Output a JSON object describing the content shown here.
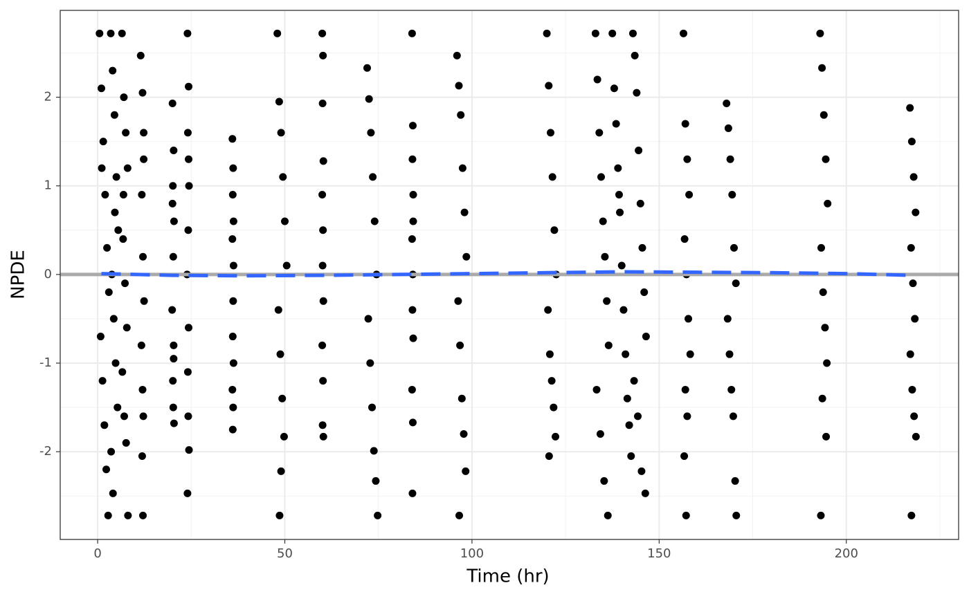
{
  "chart_data": {
    "type": "scatter",
    "x_label": "Time (hr)",
    "y_label": "NPDE",
    "xlim": [
      -10,
      230
    ],
    "ylim": [
      -2.99,
      2.98
    ],
    "xticks": [
      0,
      50,
      100,
      150,
      200
    ],
    "yticks": [
      -2,
      -1,
      0,
      1,
      2
    ],
    "grid": true,
    "color": "#000000",
    "x": [
      0.5,
      1,
      1.5,
      2,
      2.5,
      3,
      0.8,
      1.3,
      1.8,
      2.3,
      2.8,
      1.1,
      3.5,
      4,
      4.5,
      5,
      5.5,
      3.8,
      4.3,
      4.8,
      5.3,
      3.6,
      4.1,
      4.6,
      6.5,
      7,
      7.5,
      8,
      6.8,
      7.3,
      7.8,
      6.6,
      7.1,
      7.6,
      8.1,
      6.9,
      11.5,
      12,
      12.3,
      11.8,
      12.1,
      12.4,
      11.7,
      12,
      12.2,
      11.9,
      12.1,
      12.3,
      20,
      20.3,
      20.1,
      20.4,
      20.2,
      19.9,
      20.3,
      20.1,
      20.2,
      20.4,
      20,
      20.3,
      24,
      24.3,
      24.1,
      24.4,
      24.2,
      23.9,
      24.3,
      24.1,
      24.2,
      24.4,
      24,
      24.3,
      36,
      36.2,
      36.1,
      36.3,
      36,
      36.2,
      36.1,
      36.3,
      36,
      36.2,
      36.1,
      36.3,
      48,
      48.5,
      49,
      49.5,
      50,
      50.5,
      48.3,
      48.8,
      49.3,
      49.8,
      49,
      48.6,
      60,
      60.2,
      60.1,
      60.3,
      60,
      60.2,
      60.1,
      60.3,
      60,
      60.2,
      60.1,
      60.3,
      72,
      72.5,
      73,
      73.5,
      74,
      74.5,
      72.3,
      72.8,
      73.3,
      73.8,
      74.3,
      74.8,
      84,
      84.2,
      84.1,
      84.3,
      84,
      84.2,
      84.1,
      84.3,
      84,
      84.2,
      84.1,
      84.3,
      96,
      96.5,
      97,
      97.5,
      98,
      98.5,
      96.3,
      96.8,
      97.3,
      97.8,
      98.3,
      96.6,
      120,
      120.5,
      121,
      121.5,
      122,
      122.5,
      120.3,
      120.8,
      121.3,
      121.8,
      122.3,
      120.6,
      133,
      133.5,
      134,
      134.5,
      135,
      135.5,
      136,
      136.5,
      133.3,
      134.3,
      135.3,
      136.3,
      137.5,
      138,
      138.5,
      139,
      139.5,
      140,
      140.5,
      141,
      141.5,
      142,
      142.5,
      139.3,
      143,
      143.5,
      144,
      144.5,
      145,
      145.5,
      146,
      146.5,
      143.3,
      144.3,
      145.3,
      146.3,
      156.5,
      157,
      157.5,
      158,
      156.8,
      157.3,
      157.8,
      158.3,
      157,
      157.5,
      156.7,
      157.2,
      168,
      168.5,
      169,
      169.5,
      170,
      170.5,
      168.3,
      168.8,
      169.3,
      169.8,
      170.3,
      170.6,
      193,
      193.5,
      194,
      194.5,
      195,
      193.3,
      193.8,
      194.3,
      194.8,
      193.6,
      194.6,
      193.2,
      217,
      217.5,
      218,
      218.5,
      217.3,
      217.8,
      218.3,
      217.1,
      217.6,
      218.1,
      218.6,
      217.4
    ],
    "values": [
      2.72,
      2.1,
      1.5,
      0.9,
      0.3,
      -0.2,
      -0.7,
      -1.2,
      -1.7,
      -2.2,
      -2.72,
      1.2,
      2.72,
      2.3,
      1.8,
      1.1,
      0.5,
      0,
      -0.5,
      -1,
      -1.5,
      -2,
      -2.47,
      0.7,
      2.72,
      2,
      1.6,
      1.2,
      0.4,
      -0.1,
      -0.6,
      -1.1,
      -1.6,
      -1.9,
      -2.72,
      0.9,
      2.47,
      2.05,
      1.6,
      0.9,
      0.2,
      -0.3,
      -0.8,
      -1.3,
      -1.6,
      -2.05,
      -2.72,
      1.3,
      1.93,
      1.4,
      1,
      0.6,
      0.2,
      -0.4,
      -0.8,
      -1.2,
      -1.5,
      -1.68,
      0.8,
      -0.95,
      2.72,
      2.12,
      1.6,
      1,
      0.5,
      0,
      -0.6,
      -1.1,
      -1.6,
      -1.98,
      -2.47,
      1.3,
      1.53,
      1.2,
      0.9,
      0.6,
      0.4,
      -0.3,
      -0.7,
      -1,
      -1.3,
      -1.5,
      -1.75,
      0.1,
      2.72,
      1.95,
      1.6,
      1.1,
      0.6,
      0.1,
      -0.4,
      -0.9,
      -1.4,
      -1.83,
      -2.22,
      -2.72,
      2.72,
      2.47,
      1.93,
      1.28,
      0.9,
      0.5,
      0.1,
      -0.3,
      -0.8,
      -1.2,
      -1.7,
      -1.83,
      2.33,
      1.98,
      1.6,
      1.1,
      0.6,
      0,
      -0.5,
      -1,
      -1.5,
      -1.99,
      -2.33,
      -2.72,
      2.72,
      1.68,
      1.3,
      0.9,
      0.4,
      0,
      -0.4,
      -0.72,
      -1.3,
      -1.67,
      -2.47,
      0.6,
      2.47,
      2.13,
      1.8,
      1.2,
      0.7,
      0.2,
      -0.3,
      -0.8,
      -1.4,
      -1.8,
      -2.22,
      -2.72,
      2.72,
      2.13,
      1.6,
      1.1,
      0.5,
      0,
      -0.4,
      -0.9,
      -1.2,
      -1.5,
      -1.83,
      -2.05,
      2.72,
      2.2,
      1.6,
      1.1,
      0.6,
      0.2,
      -0.3,
      -0.8,
      -1.3,
      -1.8,
      -2.33,
      -2.72,
      2.72,
      2.1,
      1.7,
      1.2,
      0.7,
      0.1,
      -0.4,
      -0.9,
      -1.4,
      -1.7,
      -2.05,
      0.9,
      2.72,
      2.47,
      2.05,
      1.4,
      0.8,
      0.3,
      -0.2,
      -0.7,
      -1.2,
      -1.6,
      -2.22,
      -2.47,
      2.72,
      1.7,
      1.3,
      0.9,
      0.4,
      0,
      -0.5,
      -0.9,
      -1.3,
      -1.6,
      -2.05,
      -2.72,
      1.93,
      1.65,
      1.3,
      0.9,
      0.3,
      -0.1,
      -0.5,
      -0.9,
      -1.3,
      -1.6,
      -2.33,
      -2.72,
      2.72,
      2.33,
      1.8,
      1.3,
      0.8,
      0.3,
      -0.2,
      -0.6,
      -1,
      -1.4,
      -1.83,
      -2.72,
      1.88,
      1.5,
      1.1,
      0.7,
      0.3,
      -0.1,
      -0.5,
      -0.9,
      -1.3,
      -1.6,
      -1.83,
      -2.72
    ],
    "hline": 0,
    "hline_color": "#aaaaaa",
    "trend": {
      "color": "#3366ff",
      "x": [
        1,
        20,
        40,
        60,
        80,
        100,
        120,
        140,
        160,
        180,
        200,
        218
      ],
      "values": [
        0.01,
        -0.01,
        -0.015,
        -0.01,
        0,
        0.01,
        0.02,
        0.03,
        0.025,
        0.02,
        0.01,
        -0.01
      ]
    }
  }
}
